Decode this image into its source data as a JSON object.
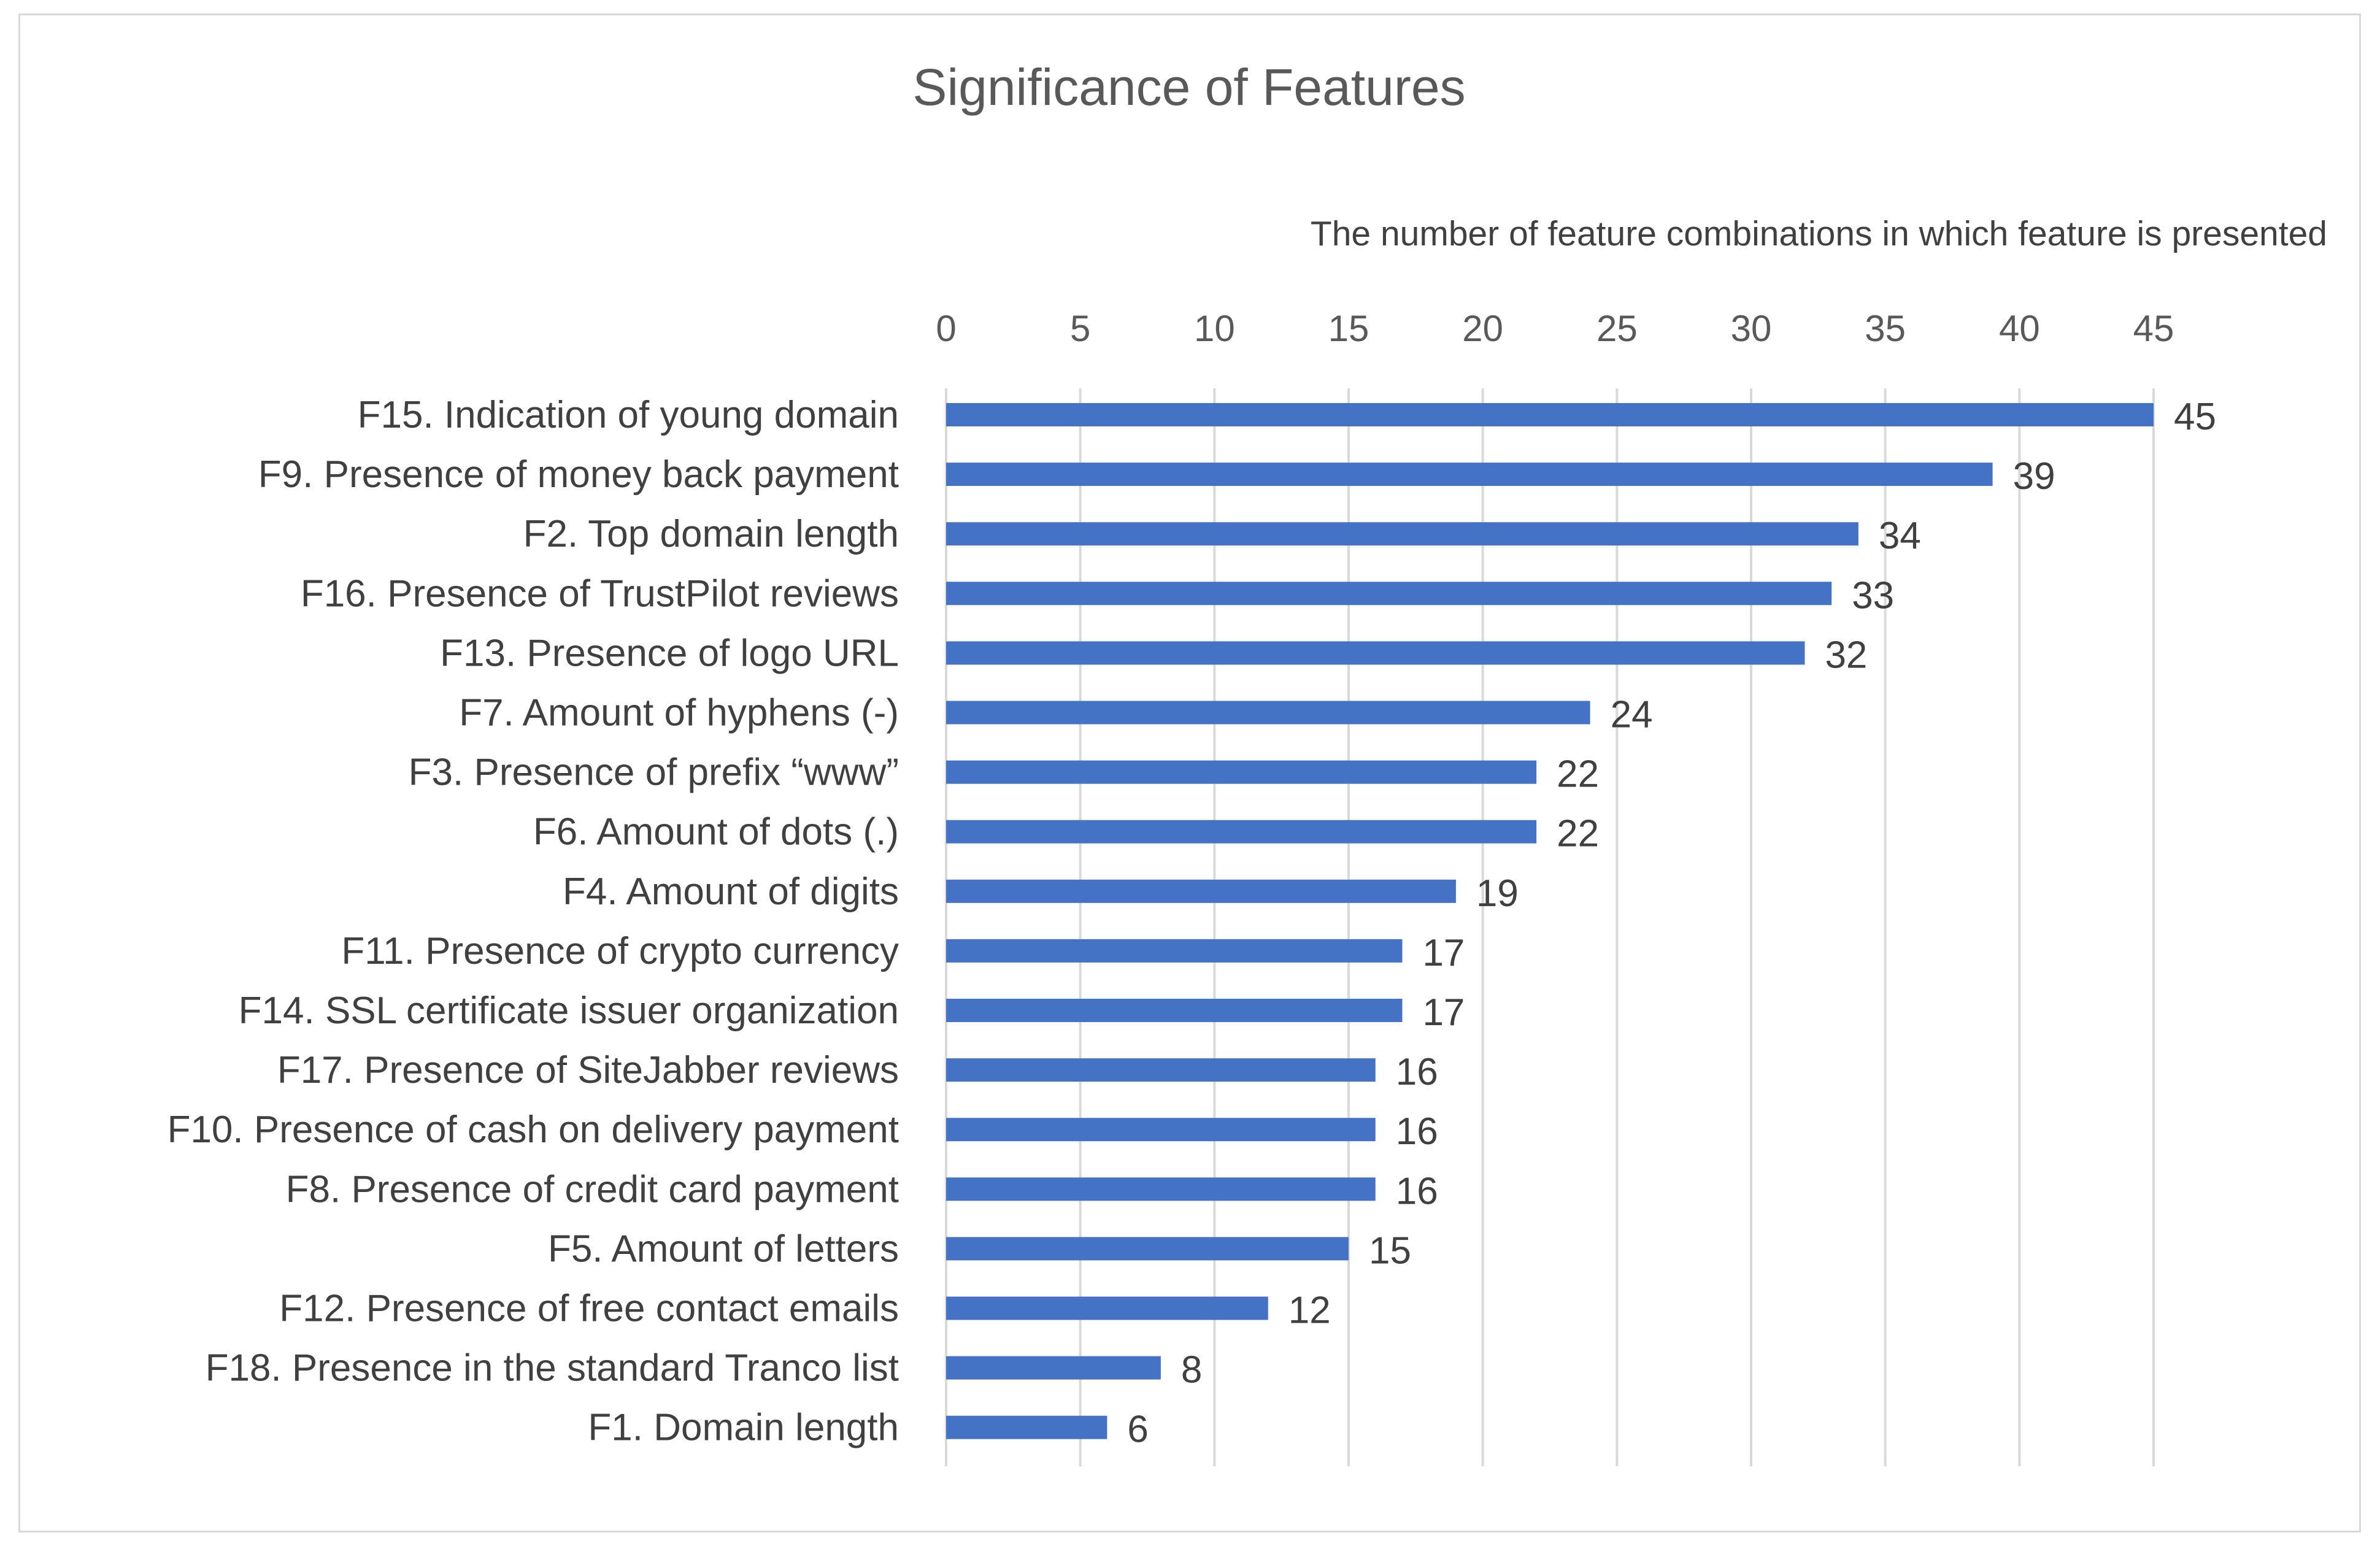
{
  "chart_data": {
    "type": "bar",
    "orientation": "horizontal",
    "title": "Significance of Features",
    "xlabel": "The number of feature combinations in which feature is presented",
    "ylabel": "",
    "xlim": [
      0,
      45
    ],
    "x_ticks": [
      "0",
      "5",
      "10",
      "15",
      "20",
      "25",
      "30",
      "35",
      "40",
      "45"
    ],
    "x_axis_position": "top",
    "grid": true,
    "bar_color": "#4472C4",
    "categories": [
      "F15. Indication of young domain",
      "F9. Presence of money back payment",
      "F2. Top domain length",
      "F16. Presence of TrustPilot reviews",
      "F13. Presence of logo URL",
      "F7. Amount of hyphens (-)",
      "F3. Presence of prefix “www”",
      "F6. Amount of dots (.)",
      "F4. Amount of digits",
      "F11. Presence of crypto currency",
      "F14. SSL certificate issuer organization",
      "F17. Presence of SiteJabber reviews",
      "F10. Presence of cash on delivery payment",
      "F8. Presence of credit card payment",
      "F5. Amount of letters",
      "F12. Presence of free contact emails",
      "F18. Presence in the standard Tranco list",
      "F1. Domain length"
    ],
    "values": [
      45,
      39,
      34,
      33,
      32,
      24,
      22,
      22,
      19,
      17,
      17,
      16,
      16,
      16,
      15,
      12,
      8,
      6
    ],
    "data_labels": [
      "45",
      "39",
      "34",
      "33",
      "32",
      "24",
      "22",
      "22",
      "19",
      "17",
      "17",
      "16",
      "16",
      "16",
      "15",
      "12",
      "8",
      "6"
    ]
  }
}
